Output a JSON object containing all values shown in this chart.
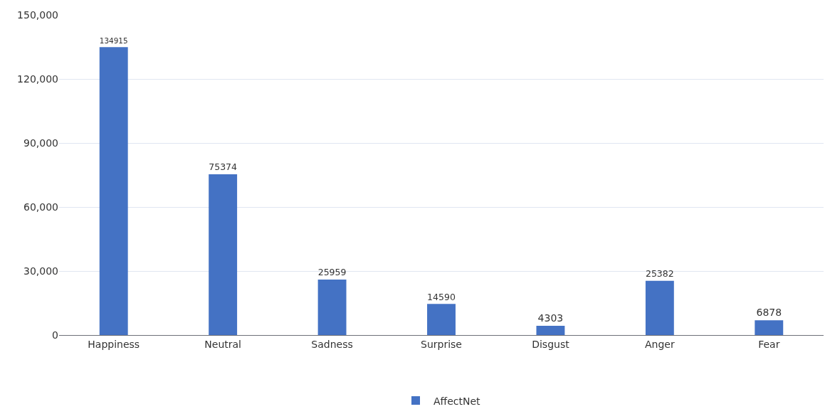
{
  "chart_data": {
    "type": "bar",
    "categories": [
      "Happiness",
      "Neutral",
      "Sadness",
      "Surprise",
      "Disgust",
      "Anger",
      "Fear"
    ],
    "series": [
      {
        "name": "AffectNet",
        "color": "#4472c4",
        "values": [
          134915,
          75374,
          25959,
          14590,
          4303,
          25382,
          6878
        ]
      }
    ],
    "ylim": [
      0,
      150000
    ],
    "yticks": [
      {
        "value": 0,
        "label": "0"
      },
      {
        "value": 30000,
        "label": "30,000"
      },
      {
        "value": 60000,
        "label": "60,000"
      },
      {
        "value": 90000,
        "label": "90,000"
      },
      {
        "value": 120000,
        "label": "120,000"
      },
      {
        "value": 150000,
        "label": "150,000"
      }
    ],
    "grid": "y",
    "legend": "bottom",
    "data_labels": true
  }
}
